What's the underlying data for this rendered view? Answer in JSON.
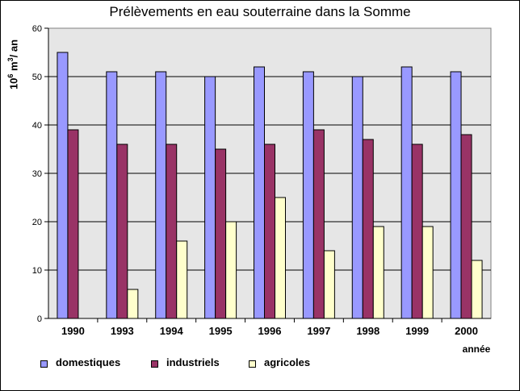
{
  "chart_data": {
    "type": "bar",
    "title": "Prélèvements en eau souterraine dans la Somme",
    "ylabel": {
      "base": "10",
      "exponent": "6",
      "unit": " m",
      "unit_exp": "3",
      "suffix": "/ an"
    },
    "xlabel": "année",
    "ylim": [
      0,
      60
    ],
    "yticks": [
      0,
      10,
      20,
      30,
      40,
      50,
      60
    ],
    "grid": true,
    "legend_position": "bottom",
    "categories": [
      "1990",
      "1993",
      "1994",
      "1995",
      "1996",
      "1997",
      "1998",
      "1999",
      "2000"
    ],
    "series": [
      {
        "name": "domestiques",
        "color": "#9999ff",
        "values": [
          55,
          51,
          51,
          50,
          52,
          51,
          50,
          52,
          51
        ]
      },
      {
        "name": "industriels",
        "color": "#993366",
        "values": [
          39,
          36,
          36,
          35,
          36,
          39,
          37,
          36,
          38
        ]
      },
      {
        "name": "agricoles",
        "color": "#ffffcc",
        "values": [
          0,
          6,
          16,
          20,
          25,
          14,
          19,
          19,
          12
        ]
      }
    ],
    "plot_background": "#e6e6e6"
  }
}
